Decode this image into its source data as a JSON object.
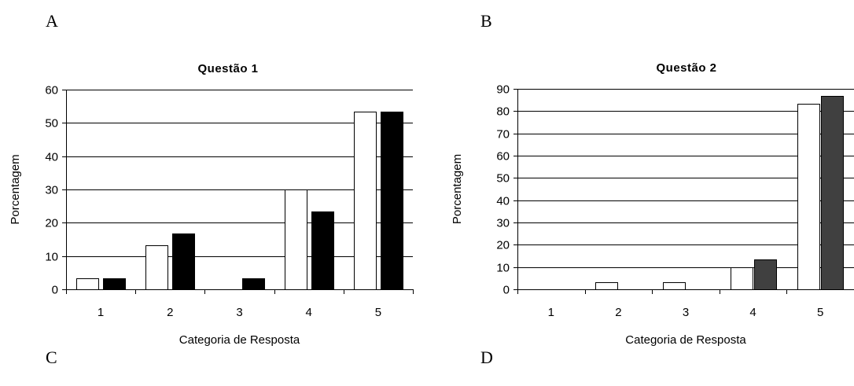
{
  "panels": {
    "a": "A",
    "b": "B",
    "c": "C",
    "d": "D"
  },
  "chart_data": [
    {
      "type": "bar",
      "title": "Questão 1",
      "xlabel": "Categoria de Resposta",
      "ylabel": "Porcentagem",
      "categories": [
        "1",
        "2",
        "3",
        "4",
        "5"
      ],
      "ylim": [
        0,
        60
      ],
      "yticks": [
        0,
        10,
        20,
        30,
        40,
        50,
        60
      ],
      "grid": true,
      "series": [
        {
          "values": [
            3.3,
            13.3,
            0,
            30.0,
            53.3
          ],
          "color": "#ffffff"
        },
        {
          "values": [
            3.3,
            16.7,
            3.3,
            23.3,
            53.3
          ],
          "color": "#000000"
        }
      ]
    },
    {
      "type": "bar",
      "title": "Questão 2",
      "xlabel": "Categoria de Resposta",
      "ylabel": "Porcentagem",
      "categories": [
        "1",
        "2",
        "3",
        "4",
        "5"
      ],
      "ylim": [
        0,
        90
      ],
      "yticks": [
        0,
        10,
        20,
        30,
        40,
        50,
        60,
        70,
        80,
        90
      ],
      "grid": true,
      "series": [
        {
          "values": [
            0,
            3.3,
            3.3,
            10.0,
            83.3
          ],
          "color": "#ffffff"
        },
        {
          "values": [
            0,
            0,
            0,
            13.3,
            86.7
          ],
          "color": "#404040"
        }
      ]
    }
  ]
}
